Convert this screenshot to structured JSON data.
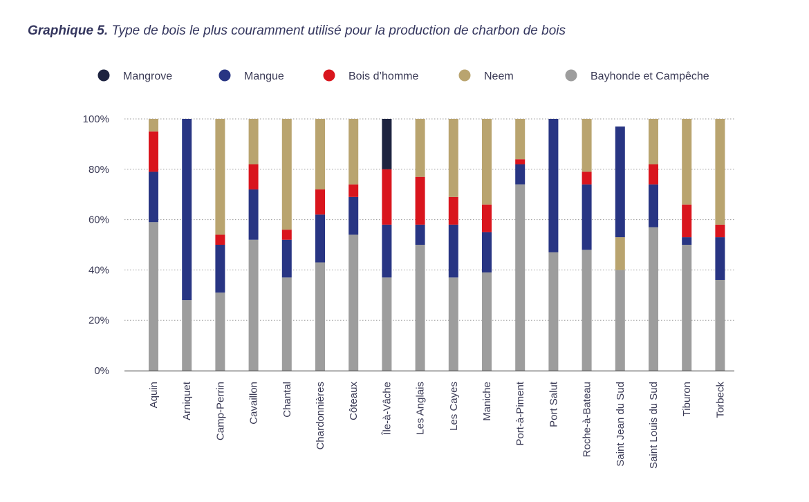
{
  "title": {
    "prefix": "Graphique 5.",
    "text": "Type de bois le plus couramment utilisé pour la production de charbon de bois"
  },
  "chart_data": {
    "type": "bar",
    "stacked": true,
    "ylim": [
      0,
      100
    ],
    "yticks": [
      "0%",
      "20%",
      "40%",
      "60%",
      "80%",
      "100%"
    ],
    "grid": "horizontal-dotted",
    "legend_position": "top",
    "categories": [
      "Aquin",
      "Arniquet",
      "Camp-Perrin",
      "Cavaillon",
      "Chantal",
      "Chardonnières",
      "Côteaux",
      "Île-à-Vâche",
      "Les Anglais",
      "Les Cayes",
      "Maniche",
      "Port-à-Piment",
      "Port Salut",
      "Roche-à-Bateau",
      "Saint Jean du Sud",
      "Saint Louis du Sud",
      "Tiburon",
      "Torbeck"
    ],
    "series": [
      {
        "name": "Bayhonde et Campêche",
        "color": "#9d9d9d",
        "values": [
          59,
          28,
          31,
          52,
          37,
          43,
          54,
          37,
          50,
          37,
          39,
          74,
          47,
          48,
          40,
          57,
          50,
          36
        ]
      },
      {
        "name": "Neem",
        "color": "#b9a46f",
        "values": [
          0,
          0,
          0,
          0,
          0,
          0,
          0,
          0,
          0,
          0,
          0,
          0,
          0,
          0,
          13,
          0,
          0,
          0
        ]
      },
      {
        "name": "Mangue",
        "color": "#283583",
        "values": [
          20,
          72,
          19,
          20,
          15,
          19,
          15,
          21,
          8,
          21,
          16,
          8,
          53,
          26,
          44,
          17,
          3,
          17
        ]
      },
      {
        "name": "Bois d’homme",
        "color": "#d9151d",
        "values": [
          16,
          0,
          4,
          10,
          4,
          10,
          5,
          22,
          19,
          11,
          11,
          2,
          0,
          5,
          0,
          8,
          13,
          5
        ]
      },
      {
        "name": "Neem",
        "color": "#b9a46f",
        "values": [
          5,
          0,
          46,
          18,
          44,
          28,
          26,
          0,
          23,
          31,
          34,
          16,
          0,
          21,
          0,
          18,
          34,
          42
        ]
      },
      {
        "name": "Mangrove",
        "color": "#1d2340",
        "values": [
          0,
          0,
          0,
          0,
          0,
          0,
          0,
          20,
          0,
          0,
          0,
          0,
          0,
          0,
          0,
          0,
          0,
          0
        ]
      }
    ],
    "legend": [
      {
        "label": "Mangrove",
        "color": "#1d2340"
      },
      {
        "label": "Mangue",
        "color": "#283583"
      },
      {
        "label": "Bois d’homme",
        "color": "#d9151d"
      },
      {
        "label": "Neem",
        "color": "#b9a46f"
      },
      {
        "label": "Bayhonde et Campêche",
        "color": "#9d9d9d"
      }
    ]
  }
}
